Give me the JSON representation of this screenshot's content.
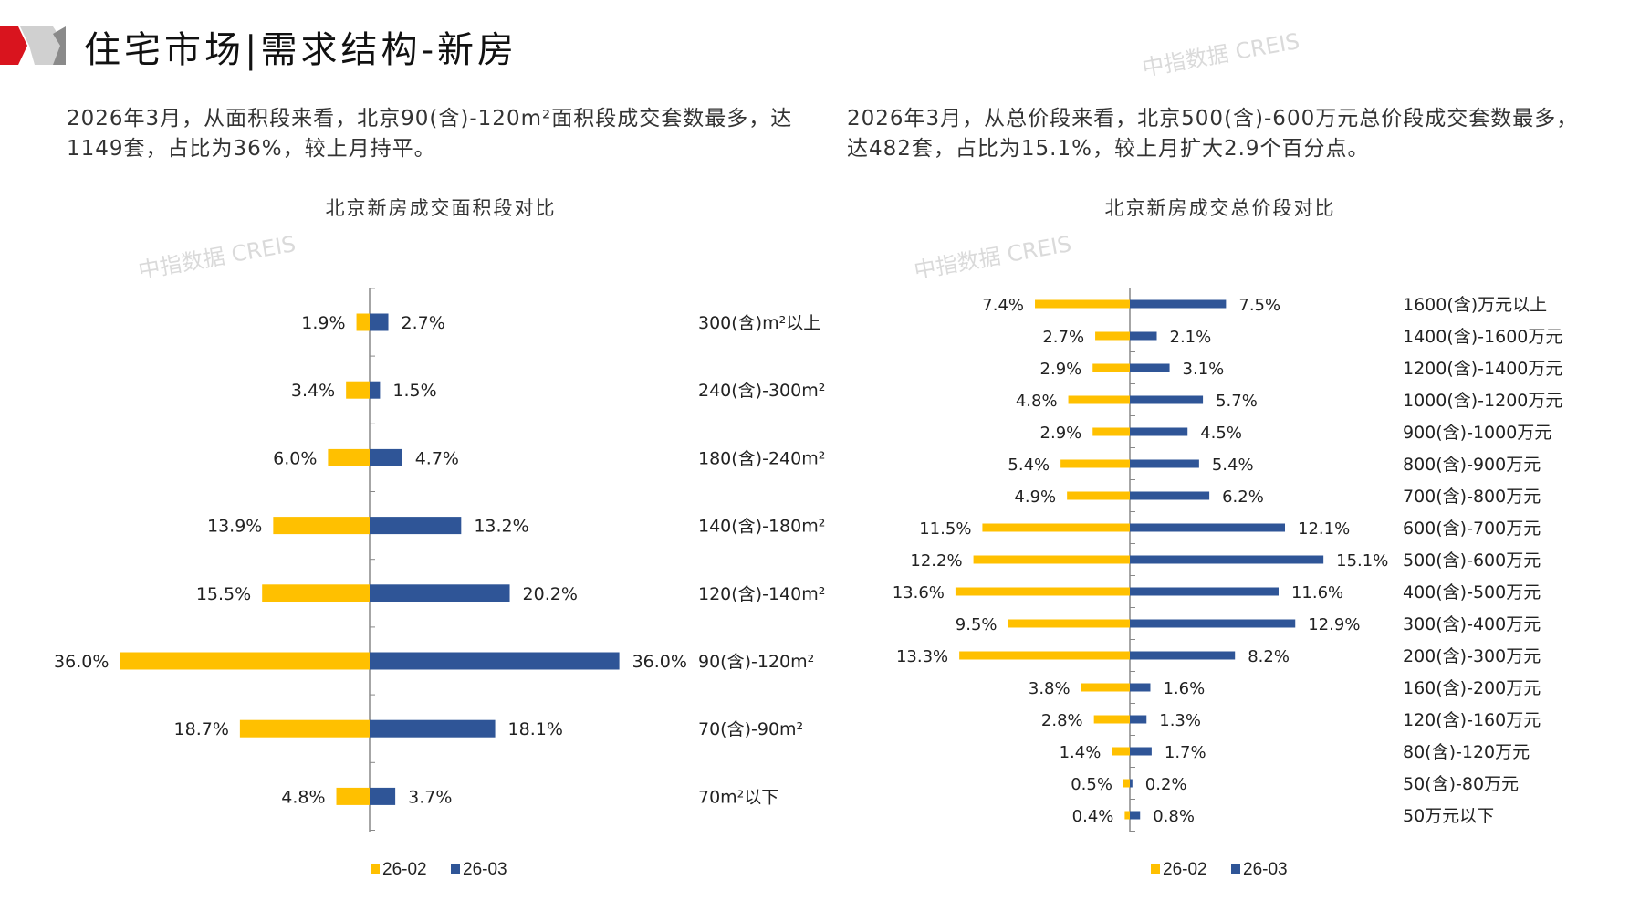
{
  "header": {
    "title": "住宅市场|需求结构-新房"
  },
  "left_text": "2026年3月，从面积段来看，北京90(含)-120m²面积段成交套数最多，达1149套，占比为36%，较上月持平。",
  "right_text": "2026年3月，从总价段来看，北京500(含)-600万元总价段成交套数最多，达482套，占比为15.1%，较上月扩大2.9个百分点。",
  "watermark": "中指数据 CREIS",
  "colors": {
    "series_26_02": "#FFC000",
    "series_26_03": "#2F5597",
    "axis": "#888888"
  },
  "chart_data": [
    {
      "type": "bar",
      "orientation": "horizontal-butterfly",
      "title": "北京新房成交面积段对比",
      "categories": [
        "300(含)m²以上",
        "240(含)-300m²",
        "180(含)-240m²",
        "140(含)-180m²",
        "120(含)-140m²",
        "90(含)-120m²",
        "70(含)-90m²",
        "70m²以下"
      ],
      "series": [
        {
          "name": "26-02",
          "values": [
            1.9,
            3.4,
            6.0,
            13.9,
            15.5,
            36.0,
            18.7,
            4.8
          ],
          "labels": [
            "1.9%",
            "3.4%",
            "6.0%",
            "13.9%",
            "15.5%",
            "36.0%",
            "18.7%",
            "4.8%"
          ]
        },
        {
          "name": "26-03",
          "values": [
            2.7,
            1.5,
            4.7,
            13.2,
            20.2,
            36.0,
            18.1,
            3.7
          ],
          "labels": [
            "2.7%",
            "1.5%",
            "4.7%",
            "13.2%",
            "20.2%",
            "36.0%",
            "18.1%",
            "3.7%"
          ]
        }
      ],
      "unit": "%",
      "legend": "bottom"
    },
    {
      "type": "bar",
      "orientation": "horizontal-butterfly",
      "title": "北京新房成交总价段对比",
      "categories": [
        "1600(含)万元以上",
        "1400(含)-1600万元",
        "1200(含)-1400万元",
        "1000(含)-1200万元",
        "900(含)-1000万元",
        "800(含)-900万元",
        "700(含)-800万元",
        "600(含)-700万元",
        "500(含)-600万元",
        "400(含)-500万元",
        "300(含)-400万元",
        "200(含)-300万元",
        "160(含)-200万元",
        "120(含)-160万元",
        "80(含)-120万元",
        "50(含)-80万元",
        "50万元以下"
      ],
      "series": [
        {
          "name": "26-02",
          "values": [
            7.4,
            2.7,
            2.9,
            4.8,
            2.9,
            5.4,
            4.9,
            11.5,
            12.2,
            13.6,
            9.5,
            13.3,
            3.8,
            2.8,
            1.4,
            0.5,
            0.4
          ],
          "labels": [
            "7.4%",
            "2.7%",
            "2.9%",
            "4.8%",
            "2.9%",
            "5.4%",
            "4.9%",
            "11.5%",
            "12.2%",
            "13.6%",
            "9.5%",
            "13.3%",
            "3.8%",
            "2.8%",
            "1.4%",
            "0.5%",
            "0.4%"
          ]
        },
        {
          "name": "26-03",
          "values": [
            7.5,
            2.1,
            3.1,
            5.7,
            4.5,
            5.4,
            6.2,
            12.1,
            15.1,
            11.6,
            12.9,
            8.2,
            1.6,
            1.3,
            1.7,
            0.2,
            0.8
          ],
          "labels": [
            "7.5%",
            "2.1%",
            "3.1%",
            "5.7%",
            "4.5%",
            "5.4%",
            "6.2%",
            "12.1%",
            "15.1%",
            "11.6%",
            "12.9%",
            "8.2%",
            "1.6%",
            "1.3%",
            "1.7%",
            "0.2%",
            "0.8%"
          ]
        }
      ],
      "unit": "%",
      "legend": "bottom"
    }
  ]
}
